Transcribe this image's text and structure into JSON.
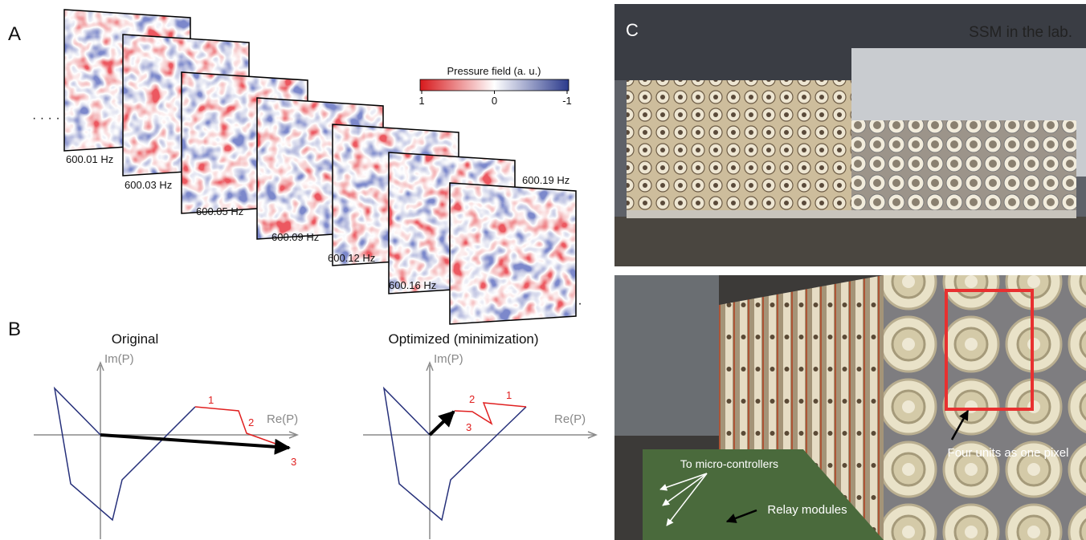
{
  "panels": {
    "a": {
      "label": "A",
      "frequencies": [
        "600.01 Hz",
        "600.03 Hz",
        "600.05 Hz",
        "600.09 Hz",
        "600.12 Hz",
        "600.16 Hz",
        "600.19 Hz"
      ],
      "colorbar": {
        "title": "Pressure field (a. u.)",
        "ticks": [
          1,
          0,
          -1
        ]
      }
    },
    "b": {
      "label": "B",
      "left": {
        "title": "Original",
        "y_axis": "Im(P)",
        "x_axis": "Re(P)",
        "steps": [
          1,
          2,
          3
        ]
      },
      "right": {
        "title": "Optimized (minimization)",
        "y_axis": "Im(P)",
        "x_axis": "Re(P)",
        "steps": [
          1,
          2,
          3
        ]
      }
    },
    "c": {
      "label": "C",
      "caption": "SSM in the lab.",
      "annotations": [
        "Four units as one pixel",
        "To micro-controllers",
        "Relay modules"
      ]
    }
  }
}
